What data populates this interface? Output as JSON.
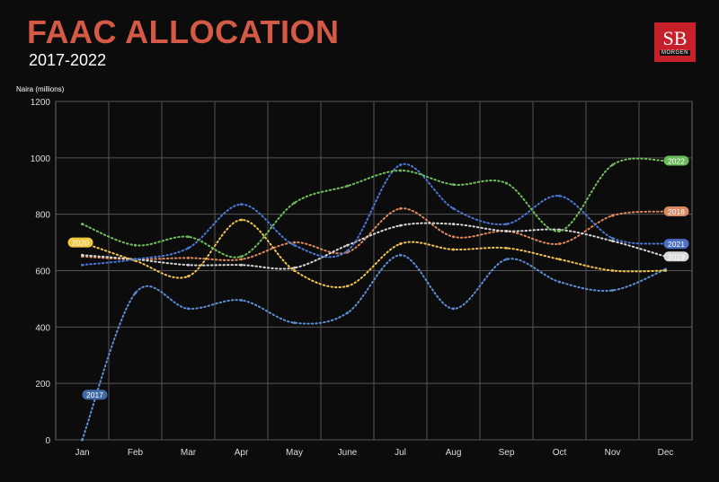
{
  "header": {
    "title": "FAAC ALLOCATION",
    "subtitle": "2017-2022",
    "logo_text": "SB",
    "logo_sub": "MORGEN"
  },
  "chart_data": {
    "type": "line",
    "ylabel": "Naira (millions)",
    "ylim": [
      0,
      1200
    ],
    "yticks": [
      0,
      200,
      400,
      600,
      800,
      1000,
      1200
    ],
    "grid": true,
    "categories": [
      "Jan",
      "Feb",
      "Mar",
      "Apr",
      "May",
      "June",
      "Jul",
      "Aug",
      "Sep",
      "Oct",
      "Nov",
      "Dec"
    ],
    "series": [
      {
        "name": "2017",
        "color": "#5b8fd6",
        "label_bg": "#3f6aa6",
        "label_side": "start",
        "label_value": 160,
        "values": [
          0,
          520,
          465,
          495,
          415,
          450,
          655,
          465,
          640,
          560,
          530,
          605
        ]
      },
      {
        "name": "2018",
        "color": "#e0895a",
        "label_bg": "#d98a63",
        "label_side": "end",
        "values": [
          650,
          640,
          645,
          640,
          700,
          665,
          820,
          720,
          740,
          695,
          795,
          810
        ]
      },
      {
        "name": "2019",
        "color": "#d8d8d8",
        "label_bg": "#d9d9d9",
        "label_side": "end",
        "values": [
          655,
          640,
          620,
          620,
          610,
          690,
          760,
          765,
          740,
          745,
          705,
          650
        ]
      },
      {
        "name": "2020",
        "color": "#f2c34e",
        "label_bg": "#f2c83c",
        "label_side": "start",
        "values": [
          700,
          635,
          580,
          780,
          600,
          545,
          695,
          675,
          680,
          640,
          600,
          600
        ]
      },
      {
        "name": "2021",
        "color": "#4a78d6",
        "label_bg": "#4a6fc4",
        "label_side": "end",
        "values": [
          620,
          640,
          680,
          835,
          690,
          670,
          975,
          820,
          765,
          865,
          715,
          695
        ]
      },
      {
        "name": "2022",
        "color": "#6fbf5a",
        "label_bg": "#6ab85a",
        "label_side": "end",
        "values": [
          765,
          690,
          720,
          650,
          840,
          900,
          955,
          905,
          910,
          740,
          975,
          990
        ]
      }
    ]
  }
}
